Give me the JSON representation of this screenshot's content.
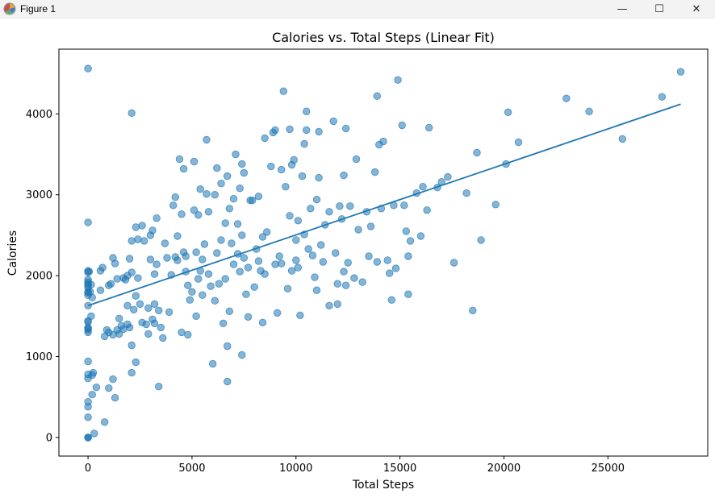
{
  "window": {
    "title": "Figure 1",
    "icons": {
      "app": "matplotlib-figure-icon",
      "minimize": "minimize-icon",
      "maximize": "maximize-icon",
      "close": "close-icon"
    },
    "controls": {
      "minimize": "—",
      "maximize": "☐",
      "close": "✕"
    }
  },
  "chart_data": {
    "type": "scatter",
    "title": "Calories vs. Total Steps (Linear Fit)",
    "xlabel": "Total Steps",
    "ylabel": "Calories",
    "xlim": [
      -1400,
      29800
    ],
    "ylim": [
      -230,
      4800
    ],
    "xticks": [
      0,
      5000,
      10000,
      15000,
      20000,
      25000
    ],
    "yticks": [
      0,
      1000,
      2000,
      3000,
      4000
    ],
    "grid": false,
    "colors": {
      "points": "#1f77b4",
      "fit_line": "#1f77b4"
    },
    "fit_line": {
      "x": [
        0,
        28500
      ],
      "y": [
        1630,
        4120
      ]
    },
    "points": [
      [
        0,
        0
      ],
      [
        0,
        0
      ],
      [
        0,
        0
      ],
      [
        0,
        1330
      ],
      [
        0,
        1360
      ],
      [
        0,
        1430
      ],
      [
        0,
        1440
      ],
      [
        0,
        1300
      ],
      [
        0,
        1350
      ],
      [
        0,
        1630
      ],
      [
        0,
        1760
      ],
      [
        0,
        1790
      ],
      [
        0,
        1800
      ],
      [
        0,
        1850
      ],
      [
        0,
        1880
      ],
      [
        0,
        1900
      ],
      [
        0,
        1920
      ],
      [
        0,
        1950
      ],
      [
        0,
        2040
      ],
      [
        0,
        2060
      ],
      [
        0,
        2660
      ],
      [
        0,
        4560
      ],
      [
        0,
        940
      ],
      [
        0,
        780
      ],
      [
        0,
        730
      ],
      [
        0,
        440
      ],
      [
        0,
        380
      ],
      [
        0,
        250
      ],
      [
        100,
        1800
      ],
      [
        150,
        1890
      ],
      [
        200,
        1730
      ],
      [
        150,
        1500
      ],
      [
        50,
        2050
      ],
      [
        200,
        530
      ],
      [
        200,
        770
      ],
      [
        250,
        800
      ],
      [
        300,
        50
      ],
      [
        400,
        620
      ],
      [
        600,
        1820
      ],
      [
        600,
        2060
      ],
      [
        700,
        2100
      ],
      [
        800,
        1250
      ],
      [
        800,
        190
      ],
      [
        900,
        1330
      ],
      [
        1000,
        1300
      ],
      [
        1000,
        1880
      ],
      [
        1100,
        1900
      ],
      [
        1000,
        610
      ],
      [
        1200,
        1270
      ],
      [
        1200,
        720
      ],
      [
        1200,
        2220
      ],
      [
        1300,
        2150
      ],
      [
        1300,
        490
      ],
      [
        1400,
        1960
      ],
      [
        1400,
        1330
      ],
      [
        1500,
        1280
      ],
      [
        1500,
        1470
      ],
      [
        1600,
        1380
      ],
      [
        1700,
        1340
      ],
      [
        1700,
        1970
      ],
      [
        1800,
        1950
      ],
      [
        1900,
        1400
      ],
      [
        1900,
        1630
      ],
      [
        1900,
        2000
      ],
      [
        2000,
        1360
      ],
      [
        2000,
        2210
      ],
      [
        2100,
        2430
      ],
      [
        2100,
        2040
      ],
      [
        2100,
        1140
      ],
      [
        2100,
        800
      ],
      [
        2100,
        4010
      ],
      [
        2200,
        1580
      ],
      [
        2300,
        930
      ],
      [
        2300,
        2600
      ],
      [
        2300,
        1750
      ],
      [
        2400,
        2450
      ],
      [
        2400,
        1970
      ],
      [
        2500,
        1650
      ],
      [
        2600,
        1420
      ],
      [
        2600,
        2620
      ],
      [
        2700,
        2430
      ],
      [
        2800,
        1400
      ],
      [
        2900,
        1600
      ],
      [
        2900,
        1280
      ],
      [
        3000,
        2200
      ],
      [
        3000,
        2500
      ],
      [
        3100,
        2560
      ],
      [
        3100,
        1460
      ],
      [
        3200,
        1410
      ],
      [
        3200,
        1650
      ],
      [
        3200,
        2020
      ],
      [
        3300,
        2140
      ],
      [
        3300,
        2710
      ],
      [
        3400,
        630
      ],
      [
        3400,
        1570
      ],
      [
        3500,
        1360
      ],
      [
        3600,
        1230
      ],
      [
        3700,
        2400
      ],
      [
        3800,
        2220
      ],
      [
        3900,
        1550
      ],
      [
        4000,
        2010
      ],
      [
        4100,
        2870
      ],
      [
        4200,
        2970
      ],
      [
        4200,
        2230
      ],
      [
        4300,
        2190
      ],
      [
        4300,
        2490
      ],
      [
        4400,
        3440
      ],
      [
        4500,
        1300
      ],
      [
        4500,
        2760
      ],
      [
        4600,
        2290
      ],
      [
        4600,
        3320
      ],
      [
        4700,
        2050
      ],
      [
        4700,
        2240
      ],
      [
        4800,
        1880
      ],
      [
        4800,
        1270
      ],
      [
        4900,
        1700
      ],
      [
        5000,
        1800
      ],
      [
        5100,
        2810
      ],
      [
        5100,
        3410
      ],
      [
        5200,
        1500
      ],
      [
        5200,
        2290
      ],
      [
        5300,
        1960
      ],
      [
        5300,
        2750
      ],
      [
        5400,
        3070
      ],
      [
        5400,
        2060
      ],
      [
        5500,
        2200
      ],
      [
        5500,
        1760
      ],
      [
        5600,
        2390
      ],
      [
        5700,
        3680
      ],
      [
        5700,
        3010
      ],
      [
        5800,
        2020
      ],
      [
        5800,
        2790
      ],
      [
        5900,
        1870
      ],
      [
        6000,
        910
      ],
      [
        6100,
        3000
      ],
      [
        6100,
        1690
      ],
      [
        6200,
        2280
      ],
      [
        6200,
        3330
      ],
      [
        6300,
        1900
      ],
      [
        6400,
        2440
      ],
      [
        6400,
        3140
      ],
      [
        6500,
        1410
      ],
      [
        6600,
        2650
      ],
      [
        6600,
        1960
      ],
      [
        6700,
        3230
      ],
      [
        6700,
        690
      ],
      [
        6700,
        1130
      ],
      [
        6800,
        2830
      ],
      [
        6800,
        1560
      ],
      [
        6900,
        2400
      ],
      [
        7000,
        2950
      ],
      [
        7000,
        2140
      ],
      [
        7100,
        3500
      ],
      [
        7200,
        2270
      ],
      [
        7200,
        2640
      ],
      [
        7300,
        3080
      ],
      [
        7300,
        2050
      ],
      [
        7400,
        3380
      ],
      [
        7400,
        2500
      ],
      [
        7400,
        1020
      ],
      [
        7500,
        3270
      ],
      [
        7500,
        2220
      ],
      [
        7600,
        1770
      ],
      [
        7700,
        2100
      ],
      [
        7700,
        1490
      ],
      [
        7800,
        2930
      ],
      [
        7900,
        2930
      ],
      [
        8000,
        1860
      ],
      [
        8100,
        2330
      ],
      [
        8200,
        2180
      ],
      [
        8200,
        2980
      ],
      [
        8300,
        2060
      ],
      [
        8400,
        2480
      ],
      [
        8400,
        1420
      ],
      [
        8500,
        3700
      ],
      [
        8500,
        2020
      ],
      [
        8600,
        2540
      ],
      [
        8800,
        3350
      ],
      [
        8900,
        3770
      ],
      [
        9000,
        2140
      ],
      [
        9000,
        3800
      ],
      [
        9100,
        1540
      ],
      [
        9200,
        2240
      ],
      [
        9300,
        2150
      ],
      [
        9300,
        3310
      ],
      [
        9400,
        4280
      ],
      [
        9500,
        3100
      ],
      [
        9600,
        1840
      ],
      [
        9700,
        3810
      ],
      [
        9700,
        2740
      ],
      [
        9800,
        3370
      ],
      [
        9800,
        2060
      ],
      [
        9900,
        3430
      ],
      [
        10000,
        2440
      ],
      [
        10000,
        2190
      ],
      [
        10100,
        2100
      ],
      [
        10100,
        2680
      ],
      [
        10200,
        1510
      ],
      [
        10300,
        3230
      ],
      [
        10400,
        2510
      ],
      [
        10400,
        3630
      ],
      [
        10500,
        4030
      ],
      [
        10500,
        3800
      ],
      [
        10600,
        2330
      ],
      [
        10700,
        2830
      ],
      [
        10800,
        2250
      ],
      [
        10900,
        1980
      ],
      [
        11000,
        2940
      ],
      [
        11000,
        1820
      ],
      [
        11100,
        3780
      ],
      [
        11100,
        3210
      ],
      [
        11200,
        2380
      ],
      [
        11300,
        2170
      ],
      [
        11400,
        2630
      ],
      [
        11600,
        1630
      ],
      [
        11600,
        2790
      ],
      [
        11800,
        3910
      ],
      [
        11900,
        2280
      ],
      [
        12000,
        1900
      ],
      [
        12000,
        1650
      ],
      [
        12100,
        2860
      ],
      [
        12200,
        2700
      ],
      [
        12300,
        3240
      ],
      [
        12300,
        2050
      ],
      [
        12400,
        1880
      ],
      [
        12400,
        3820
      ],
      [
        12500,
        2160
      ],
      [
        12600,
        2860
      ],
      [
        12800,
        1970
      ],
      [
        12900,
        3440
      ],
      [
        13000,
        2570
      ],
      [
        13200,
        1920
      ],
      [
        13400,
        2790
      ],
      [
        13500,
        2240
      ],
      [
        13600,
        2610
      ],
      [
        13800,
        3280
      ],
      [
        13900,
        4220
      ],
      [
        13900,
        2170
      ],
      [
        14000,
        3620
      ],
      [
        14100,
        2830
      ],
      [
        14200,
        3660
      ],
      [
        14400,
        2190
      ],
      [
        14500,
        2030
      ],
      [
        14600,
        1700
      ],
      [
        14700,
        2870
      ],
      [
        14800,
        2090
      ],
      [
        14900,
        4420
      ],
      [
        15100,
        3860
      ],
      [
        15200,
        2870
      ],
      [
        15300,
        2550
      ],
      [
        15400,
        1770
      ],
      [
        15400,
        2240
      ],
      [
        15500,
        2430
      ],
      [
        15800,
        3020
      ],
      [
        16000,
        2490
      ],
      [
        16100,
        3100
      ],
      [
        16300,
        2810
      ],
      [
        16400,
        3830
      ],
      [
        16800,
        3090
      ],
      [
        17000,
        3160
      ],
      [
        17300,
        3220
      ],
      [
        17600,
        2160
      ],
      [
        18200,
        3020
      ],
      [
        18500,
        1570
      ],
      [
        18700,
        3520
      ],
      [
        18900,
        2440
      ],
      [
        19600,
        2880
      ],
      [
        20100,
        3380
      ],
      [
        20200,
        4020
      ],
      [
        20700,
        3650
      ],
      [
        23000,
        4190
      ],
      [
        24100,
        4030
      ],
      [
        25700,
        3690
      ],
      [
        27600,
        4210
      ],
      [
        28500,
        4520
      ]
    ]
  }
}
